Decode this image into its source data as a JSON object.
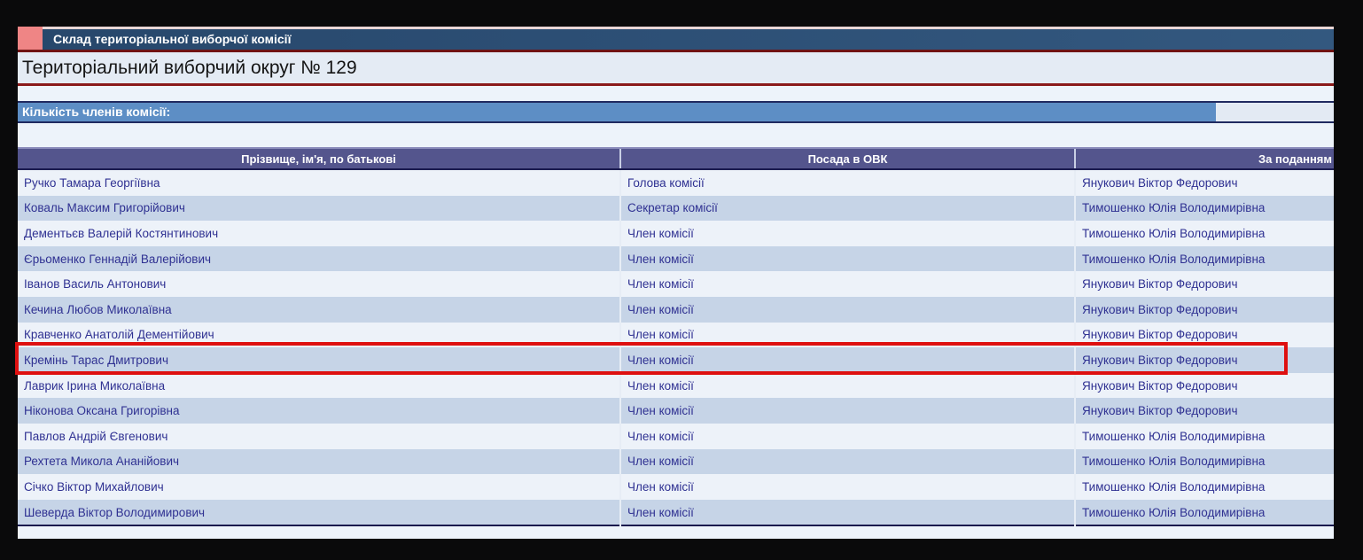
{
  "page": {
    "section_title": "Склад територіальної виборчої комісії",
    "district_title": "Територіальний виборчий округ № 129",
    "count_label": "Кількість членів комісії:"
  },
  "table": {
    "columns": [
      "Прізвище, ім'я, по батькові",
      "Посада в ОВК",
      "За поданням"
    ],
    "rows": [
      {
        "name": "Ручко Тамара Георгіївна",
        "position": "Голова комісії",
        "nominated_by": "Янукович Віктор Федорович",
        "highlighted": false
      },
      {
        "name": "Коваль Максим Григорійович",
        "position": "Секретар комісії",
        "nominated_by": "Тимошенко Юлія Володимирівна",
        "highlighted": false
      },
      {
        "name": "Дементьєв Валерій Костянтинович",
        "position": "Член комісії",
        "nominated_by": "Тимошенко Юлія Володимирівна",
        "highlighted": false
      },
      {
        "name": "Єрьоменко Геннадій Валерійович",
        "position": "Член комісії",
        "nominated_by": "Тимошенко Юлія Володимирівна",
        "highlighted": false
      },
      {
        "name": "Іванов Василь Антонович",
        "position": "Член комісії",
        "nominated_by": "Янукович Віктор Федорович",
        "highlighted": false
      },
      {
        "name": "Кечина Любов Миколаївна",
        "position": "Член комісії",
        "nominated_by": "Янукович Віктор Федорович",
        "highlighted": false
      },
      {
        "name": "Кравченко Анатолій Дементійович",
        "position": "Член комісії",
        "nominated_by": "Янукович Віктор Федорович",
        "highlighted": false
      },
      {
        "name": "Кремінь Тарас Дмитрович",
        "position": "Член комісії",
        "nominated_by": "Янукович Віктор Федорович",
        "highlighted": true
      },
      {
        "name": "Лаврик Ірина Миколаївна",
        "position": "Член комісії",
        "nominated_by": "Янукович Віктор Федорович",
        "highlighted": false
      },
      {
        "name": "Ніконова Оксана Григорівна",
        "position": "Член комісії",
        "nominated_by": "Янукович Віктор Федорович",
        "highlighted": false
      },
      {
        "name": "Павлов Андрій Євгенович",
        "position": "Член комісії",
        "nominated_by": "Тимошенко Юлія Володимирівна",
        "highlighted": false
      },
      {
        "name": "Рехтета Микола Ананійович",
        "position": "Член комісії",
        "nominated_by": "Тимошенко Юлія Володимирівна",
        "highlighted": false
      },
      {
        "name": "Січко Віктор Михайлович",
        "position": "Член комісії",
        "nominated_by": "Тимошенко Юлія Володимирівна",
        "highlighted": false
      },
      {
        "name": "Шеверда Віктор Володимирович",
        "position": "Член комісії",
        "nominated_by": "Тимошенко Юлія Володимирівна",
        "highlighted": false
      }
    ]
  },
  "colors": {
    "highlight_red": "#de1010",
    "section_bar_blue": "#2c4e74",
    "salmon_accent": "#ef8585",
    "dark_red_rule": "#8a1a1a",
    "count_bar_blue": "#5d8ec5",
    "table_header_purple": "#54558d",
    "row_light": "#edf2f9",
    "row_alt_blue": "#c6d4e7",
    "row_text_navy": "#2f3192",
    "page_background": "#e4ebf4",
    "outer_background": "#0a0a0b"
  }
}
